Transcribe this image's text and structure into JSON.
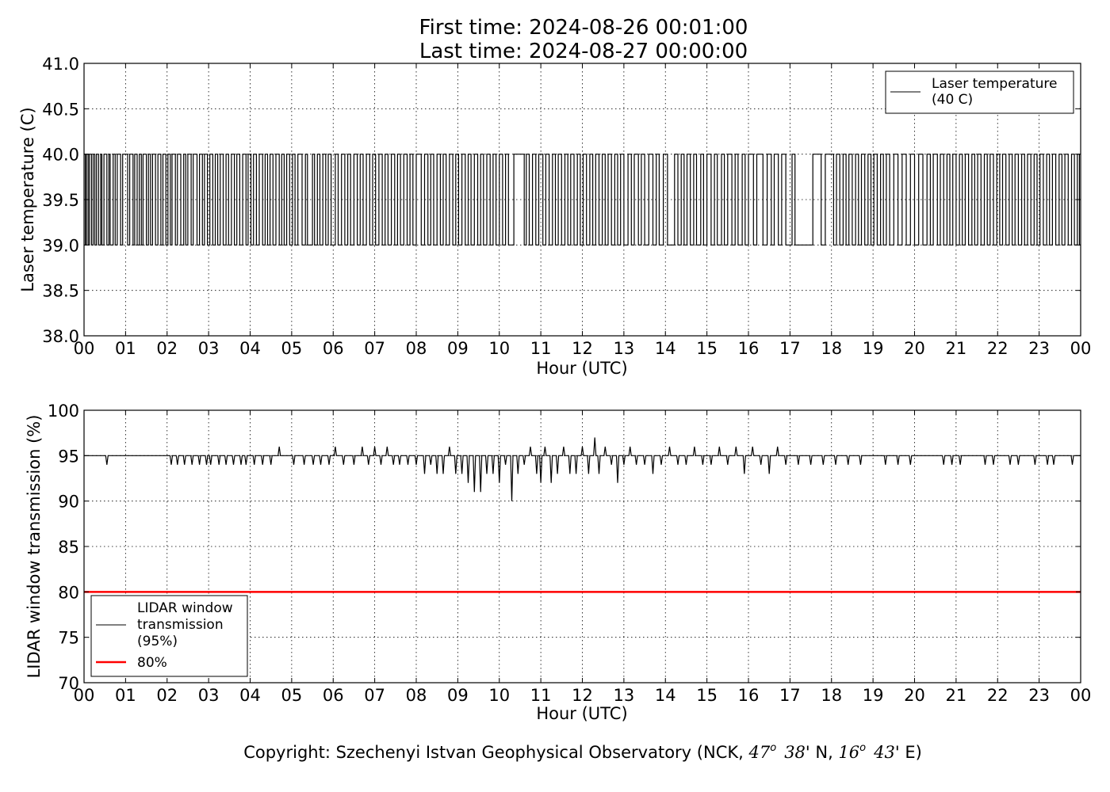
{
  "header": {
    "first_time": "First time: 2024-08-26 00:01:00",
    "last_time": "Last time: 2024-08-27 00:00:00"
  },
  "footer": {
    "copyright_prefix": "Copyright: Szechenyi Istvan Geophysical Observatory (NCK, ",
    "lat_deg": "47",
    "lat_min": "38",
    "lat_suffix": "' N, ",
    "lon_deg": "16",
    "lon_min": "43",
    "lon_suffix": "' E)",
    "degree_mark": "o"
  },
  "colors": {
    "series": "#000000",
    "threshold": "#ff0000",
    "grid": "#000000"
  },
  "chart_data": [
    {
      "type": "line",
      "xlabel": "Hour (UTC)",
      "ylabel": "Laser temperature (C)",
      "xlim": [
        0,
        24
      ],
      "ylim": [
        38.0,
        41.0
      ],
      "x_ticks": [
        "00",
        "01",
        "02",
        "03",
        "04",
        "05",
        "06",
        "07",
        "08",
        "09",
        "10",
        "11",
        "12",
        "13",
        "14",
        "15",
        "16",
        "17",
        "18",
        "19",
        "20",
        "21",
        "22",
        "23",
        "00"
      ],
      "y_ticks": [
        "38.0",
        "38.5",
        "39.0",
        "39.5",
        "40.0",
        "40.5",
        "41.0"
      ],
      "grid": true,
      "legend_position": "top-right",
      "legend": [
        "Laser temperature",
        "(40 C)"
      ],
      "series": [
        {
          "values_desc": "stepwise toggling between 39.0 and 40.0 throughout the day",
          "low": 39.0,
          "high": 40.0,
          "switch_hours": [
            0.03,
            0.06,
            0.1,
            0.13,
            0.18,
            0.22,
            0.26,
            0.3,
            0.35,
            0.4,
            0.43,
            0.48,
            0.55,
            0.6,
            0.63,
            0.7,
            0.75,
            0.8,
            0.88,
            0.93,
            1.05,
            1.1,
            1.18,
            1.22,
            1.28,
            1.33,
            1.38,
            1.42,
            1.5,
            1.55,
            1.6,
            1.65,
            1.72,
            1.78,
            1.85,
            1.9,
            1.97,
            2.02,
            2.08,
            2.12,
            2.2,
            2.25,
            2.33,
            2.4,
            2.45,
            2.5,
            2.58,
            2.63,
            2.72,
            2.78,
            2.85,
            2.9,
            2.97,
            3.03,
            3.1,
            3.16,
            3.22,
            3.28,
            3.35,
            3.42,
            3.48,
            3.55,
            3.62,
            3.68,
            3.75,
            3.82,
            3.9,
            3.95,
            4.02,
            4.08,
            4.15,
            4.22,
            4.3,
            4.36,
            4.42,
            4.48,
            4.55,
            4.62,
            4.7,
            4.76,
            4.82,
            4.88,
            4.95,
            5.02,
            5.08,
            5.15,
            5.25,
            5.33,
            5.38,
            5.5,
            5.55,
            5.62,
            5.68,
            5.75,
            5.82,
            5.88,
            5.95,
            6.05,
            6.12,
            6.2,
            6.28,
            6.35,
            6.42,
            6.5,
            6.58,
            6.65,
            6.72,
            6.8,
            6.88,
            6.95,
            7.02,
            7.1,
            7.18,
            7.25,
            7.32,
            7.4,
            7.48,
            7.55,
            7.62,
            7.7,
            7.78,
            7.85,
            7.92,
            8.0,
            8.12,
            8.2,
            8.28,
            8.35,
            8.42,
            8.5,
            8.58,
            8.65,
            8.72,
            8.8,
            8.88,
            8.95,
            9.02,
            9.1,
            9.18,
            9.25,
            9.32,
            9.4,
            9.48,
            9.55,
            9.62,
            9.7,
            9.78,
            9.85,
            9.92,
            10.0,
            10.08,
            10.15,
            10.22,
            10.35,
            10.6,
            10.65,
            10.72,
            10.8,
            10.88,
            10.95,
            11.05,
            11.12,
            11.2,
            11.28,
            11.35,
            11.42,
            11.5,
            11.58,
            11.65,
            11.72,
            11.8,
            11.88,
            11.95,
            12.02,
            12.1,
            12.18,
            12.25,
            12.32,
            12.4,
            12.48,
            12.55,
            12.62,
            12.7,
            12.78,
            12.85,
            12.92,
            13.0,
            13.1,
            13.18,
            13.25,
            13.35,
            13.42,
            13.5,
            13.6,
            13.7,
            13.78,
            13.85,
            13.95,
            14.05,
            14.22,
            14.3,
            14.38,
            14.45,
            14.52,
            14.6,
            14.68,
            14.75,
            14.85,
            14.92,
            15.0,
            15.1,
            15.18,
            15.25,
            15.35,
            15.42,
            15.5,
            15.6,
            15.68,
            15.75,
            15.85,
            15.92,
            16.0,
            16.12,
            16.2,
            16.35,
            16.45,
            16.55,
            16.62,
            16.72,
            16.8,
            16.9,
            17.05,
            17.12,
            17.55,
            17.75,
            17.85,
            18.05,
            18.12,
            18.2,
            18.28,
            18.35,
            18.42,
            18.5,
            18.58,
            18.65,
            18.72,
            18.8,
            18.88,
            18.95,
            19.02,
            19.1,
            19.18,
            19.25,
            19.32,
            19.4,
            19.5,
            19.6,
            19.7,
            19.8,
            19.9,
            20.0,
            20.1,
            20.2,
            20.3,
            20.38,
            20.45,
            20.55,
            20.62,
            20.7,
            20.78,
            20.85,
            20.92,
            21.0,
            21.08,
            21.15,
            21.22,
            21.3,
            21.38,
            21.45,
            21.52,
            21.6,
            21.68,
            21.75,
            21.82,
            21.9,
            21.98,
            22.05,
            22.12,
            22.2,
            22.28,
            22.35,
            22.42,
            22.5,
            22.58,
            22.65,
            22.72,
            22.8,
            22.88,
            22.95,
            23.02,
            23.1,
            23.18,
            23.25,
            23.32,
            23.4,
            23.48,
            23.55,
            23.62,
            23.7,
            23.78,
            23.85,
            23.92,
            23.97
          ]
        }
      ]
    },
    {
      "type": "line",
      "xlabel": "Hour (UTC)",
      "ylabel": "LIDAR window transmission (%)",
      "xlim": [
        0,
        24
      ],
      "ylim": [
        70,
        100
      ],
      "x_ticks": [
        "00",
        "01",
        "02",
        "03",
        "04",
        "05",
        "06",
        "07",
        "08",
        "09",
        "10",
        "11",
        "12",
        "13",
        "14",
        "15",
        "16",
        "17",
        "18",
        "19",
        "20",
        "21",
        "22",
        "23",
        "00"
      ],
      "y_ticks": [
        "70",
        "75",
        "80",
        "85",
        "90",
        "95",
        "100"
      ],
      "grid": true,
      "legend_position": "lower-left",
      "series": [
        {
          "name_lines": [
            "LIDAR window",
            "transmission",
            "(95%)"
          ],
          "baseline": 95,
          "dips": [
            [
              0.55,
              94
            ],
            [
              2.1,
              94
            ],
            [
              2.25,
              94
            ],
            [
              2.42,
              94
            ],
            [
              2.6,
              94
            ],
            [
              2.78,
              94
            ],
            [
              2.95,
              94
            ],
            [
              3.05,
              94
            ],
            [
              3.25,
              94
            ],
            [
              3.42,
              94
            ],
            [
              3.6,
              94
            ],
            [
              3.78,
              94
            ],
            [
              3.9,
              94
            ],
            [
              4.1,
              94
            ],
            [
              4.3,
              94
            ],
            [
              4.5,
              94
            ],
            [
              4.7,
              96
            ],
            [
              5.05,
              94
            ],
            [
              5.3,
              94
            ],
            [
              5.52,
              94
            ],
            [
              5.7,
              94
            ],
            [
              5.9,
              94
            ],
            [
              6.05,
              96
            ],
            [
              6.25,
              94
            ],
            [
              6.5,
              94
            ],
            [
              6.7,
              96
            ],
            [
              6.85,
              94
            ],
            [
              7.0,
              96
            ],
            [
              7.15,
              94
            ],
            [
              7.3,
              96
            ],
            [
              7.45,
              94
            ],
            [
              7.6,
              94
            ],
            [
              7.8,
              94
            ],
            [
              8.0,
              94
            ],
            [
              8.2,
              93
            ],
            [
              8.35,
              94
            ],
            [
              8.5,
              93
            ],
            [
              8.65,
              93
            ],
            [
              8.8,
              96
            ],
            [
              8.95,
              93
            ],
            [
              9.1,
              93
            ],
            [
              9.25,
              92
            ],
            [
              9.4,
              91
            ],
            [
              9.55,
              91
            ],
            [
              9.7,
              93
            ],
            [
              9.85,
              93
            ],
            [
              10.0,
              92
            ],
            [
              10.15,
              94
            ],
            [
              10.3,
              90
            ],
            [
              10.45,
              93
            ],
            [
              10.6,
              94
            ],
            [
              10.75,
              96
            ],
            [
              10.9,
              93
            ],
            [
              11.0,
              92
            ],
            [
              11.1,
              96
            ],
            [
              11.25,
              92
            ],
            [
              11.4,
              93
            ],
            [
              11.55,
              96
            ],
            [
              11.7,
              93
            ],
            [
              11.85,
              93
            ],
            [
              12.0,
              96
            ],
            [
              12.15,
              93
            ],
            [
              12.3,
              97
            ],
            [
              12.4,
              93
            ],
            [
              12.55,
              96
            ],
            [
              12.7,
              94
            ],
            [
              12.85,
              92
            ],
            [
              13.0,
              94
            ],
            [
              13.15,
              96
            ],
            [
              13.3,
              94
            ],
            [
              13.5,
              94
            ],
            [
              13.7,
              93
            ],
            [
              13.9,
              94
            ],
            [
              14.1,
              96
            ],
            [
              14.3,
              94
            ],
            [
              14.5,
              94
            ],
            [
              14.7,
              96
            ],
            [
              14.9,
              94
            ],
            [
              15.1,
              94
            ],
            [
              15.3,
              96
            ],
            [
              15.5,
              94
            ],
            [
              15.7,
              96
            ],
            [
              15.9,
              93
            ],
            [
              16.1,
              96
            ],
            [
              16.3,
              94
            ],
            [
              16.5,
              93
            ],
            [
              16.7,
              96
            ],
            [
              16.9,
              94
            ],
            [
              17.2,
              94
            ],
            [
              17.5,
              94
            ],
            [
              17.8,
              94
            ],
            [
              18.1,
              94
            ],
            [
              18.4,
              94
            ],
            [
              18.7,
              94
            ],
            [
              19.3,
              94
            ],
            [
              19.6,
              94
            ],
            [
              19.9,
              94
            ],
            [
              20.7,
              94
            ],
            [
              20.9,
              94
            ],
            [
              21.1,
              94
            ],
            [
              21.7,
              94
            ],
            [
              21.9,
              94
            ],
            [
              22.3,
              94
            ],
            [
              22.5,
              94
            ],
            [
              22.9,
              94
            ],
            [
              23.2,
              94
            ],
            [
              23.35,
              94
            ],
            [
              23.8,
              94
            ]
          ]
        },
        {
          "name": "80%",
          "value": 80
        }
      ]
    }
  ]
}
